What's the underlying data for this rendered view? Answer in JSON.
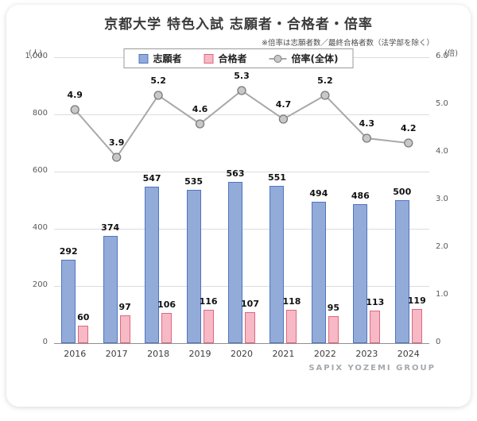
{
  "title": "京都大学 特色入試 志願者・合格者・倍率",
  "note": "※倍率は志願者数／最終合格者数（法学部を除く）",
  "footer": "SAPIX YOZEMI GROUP",
  "axes": {
    "left_unit": "(人)",
    "right_unit": "(倍)",
    "left_ticks": [
      "1,000",
      "800",
      "600",
      "400",
      "200",
      "0"
    ],
    "right_ticks": [
      "6.0",
      "5.0",
      "4.0",
      "3.0",
      "2.0",
      "1.0",
      "0"
    ]
  },
  "chart_data": {
    "type": "bar+line",
    "title": "京都大学 特色入試 志願者・合格者・倍率",
    "categories": [
      "2016",
      "2017",
      "2018",
      "2019",
      "2020",
      "2021",
      "2022",
      "2023",
      "2024"
    ],
    "series": [
      {
        "name": "志願者",
        "type": "bar",
        "axis": "left",
        "color": "#92abd9",
        "border_color": "#4f75c2",
        "values": [
          292,
          374,
          547,
          535,
          563,
          551,
          494,
          486,
          500
        ]
      },
      {
        "name": "合格者",
        "type": "bar",
        "axis": "left",
        "color": "#f6b9c5",
        "border_color": "#e0677f",
        "values": [
          60,
          97,
          106,
          116,
          107,
          118,
          95,
          113,
          119
        ]
      },
      {
        "name": "倍率(全体)",
        "type": "line",
        "axis": "right",
        "color": "#a8a8a8",
        "marker_fill": "#c8c8c8",
        "marker_border": "#7a7a7a",
        "values": [
          4.9,
          3.9,
          5.2,
          4.6,
          5.3,
          4.7,
          5.2,
          4.3,
          4.2
        ]
      }
    ],
    "left_axis": {
      "min": 0,
      "max": 1000,
      "step": 200
    },
    "right_axis": {
      "min": 0,
      "max": 6,
      "step": 1
    },
    "legend_position": "top",
    "grid": true
  }
}
